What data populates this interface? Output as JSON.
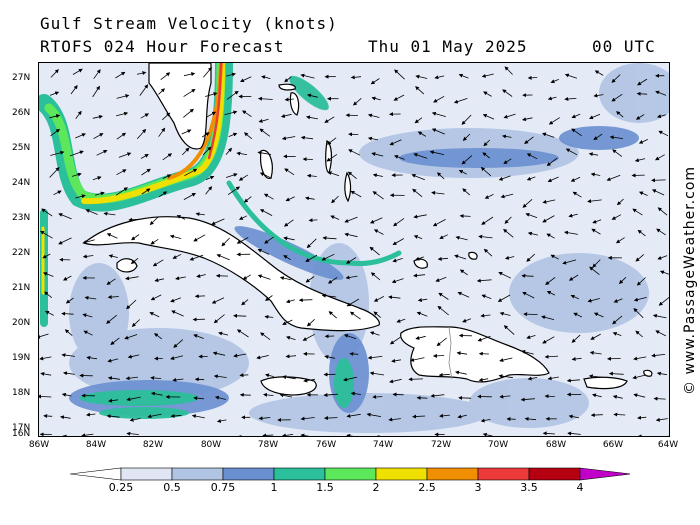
{
  "header": {
    "title": "Gulf Stream Velocity (knots)",
    "subtitle": "RTOFS 024 Hour Forecast",
    "date": "Thu 01 May 2025",
    "time": "00 UTC"
  },
  "credit": "© www.PassageWeather.com",
  "map": {
    "region": "Caribbean / Bahamas / Florida Straits",
    "lat_labels": [
      "27N",
      "26N",
      "25N",
      "24N",
      "23N",
      "22N",
      "21N",
      "20N",
      "19N",
      "18N",
      "17N",
      "16N"
    ],
    "lon_labels": [
      "86W",
      "84W",
      "82W",
      "80W",
      "78W",
      "76W",
      "74W",
      "72W",
      "70W",
      "68W",
      "66W",
      "64W"
    ],
    "land_color": "#ffffff",
    "water_base_color": "#e4eaf6"
  },
  "legend": {
    "labels": [
      "0.25",
      "0.5",
      "0.75",
      "1",
      "1.5",
      "2",
      "2.5",
      "3",
      "3.5",
      "4"
    ],
    "colors": [
      "#ffffff",
      "#e0e6f4",
      "#b0c4e4",
      "#6a8fd0",
      "#2cbf9b",
      "#5de85c",
      "#f0e000",
      "#f09000",
      "#ec3a3a",
      "#b40010",
      "#c000c8"
    ]
  }
}
